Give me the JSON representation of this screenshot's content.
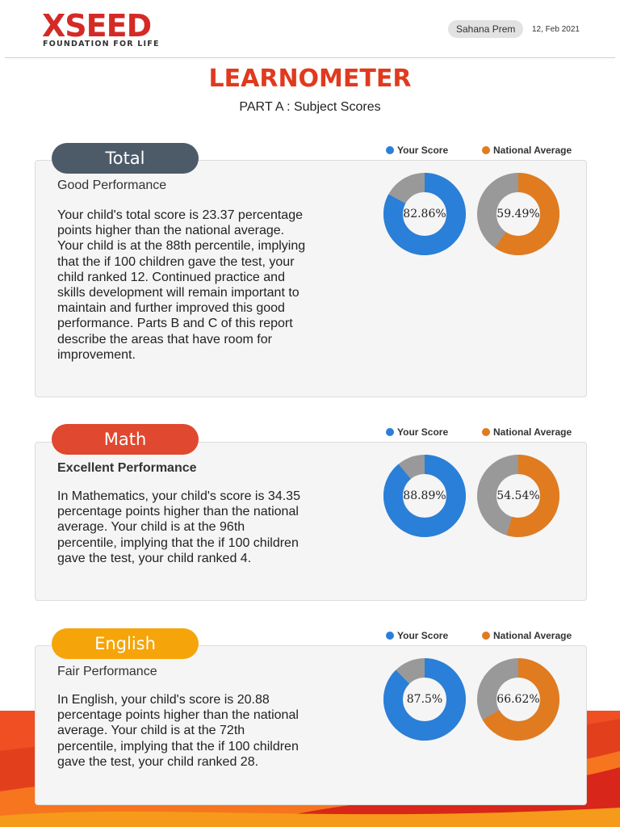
{
  "brand": {
    "name": "XSEED",
    "tagline": "FOUNDATION FOR LIFE"
  },
  "header": {
    "student_name": "Sahana Prem",
    "date": "12, Feb 2021"
  },
  "page": {
    "title": "LEARNOMETER",
    "subtitle": "PART A : Subject Scores"
  },
  "legend": {
    "your_score": "Your Score",
    "national_average": "National Average"
  },
  "colors": {
    "your_score": "#2a7fd8",
    "national_average": "#e07b20",
    "remainder": "#999999",
    "total_pill": "#4d5b69",
    "math_pill": "#e0482f",
    "english_pill": "#f5a50a"
  },
  "sections": [
    {
      "id": "total",
      "title": "Total",
      "performance": "Good Performance",
      "description": "Your child's total score is 23.37 percentage points higher than the national average. Your child is at the 88th percentile, implying that the if 100 children gave the test, your child ranked 12. Continued practice and skills development will remain important to maintain and further improved this good performance. Parts B and C of this report describe the areas that have room for improvement.",
      "your_score": 82.86,
      "your_score_label": "82.86%",
      "national_average": 59.49,
      "national_average_label": "59.49%"
    },
    {
      "id": "math",
      "title": "Math",
      "performance": "Excellent Performance",
      "description": "In Mathematics, your child's score is 34.35 percentage points higher than the national average. Your child is at the 96th percentile, implying that the if 100 children gave the test, your child ranked 4.",
      "your_score": 88.89,
      "your_score_label": "88.89%",
      "national_average": 54.54,
      "national_average_label": "54.54%"
    },
    {
      "id": "english",
      "title": "English",
      "performance": "Fair Performance",
      "description": "In English, your child's score is 20.88 percentage points higher than the national average. Your child is at the 72th percentile, implying that the if 100 children gave the test, your child ranked 28.",
      "your_score": 87.5,
      "your_score_label": "87.5%",
      "national_average": 66.62,
      "national_average_label": "66.62%"
    }
  ]
}
